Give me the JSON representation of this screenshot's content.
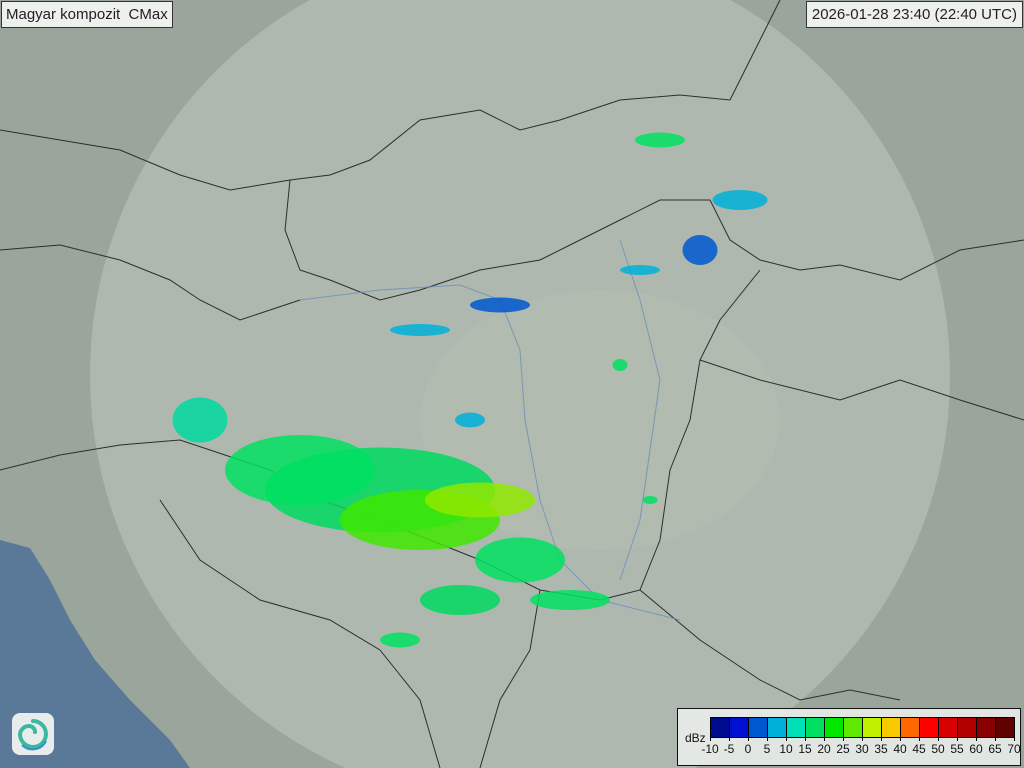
{
  "header": {
    "title": "Magyar kompozit  CMax",
    "timestamp": "2026-01-28 23:40 (22:40 UTC)"
  },
  "logo": {
    "icon": "swirl-logo-icon"
  },
  "legend": {
    "unit": "dBz",
    "ticks": [
      "-10",
      "-5",
      "0",
      "5",
      "10",
      "15",
      "20",
      "25",
      "30",
      "35",
      "40",
      "45",
      "50",
      "55",
      "60",
      "65",
      "70"
    ],
    "colors": [
      "#000c90",
      "#0010d0",
      "#0058d0",
      "#00b0d8",
      "#00e0b8",
      "#00e060",
      "#00e800",
      "#60e800",
      "#c0f000",
      "#f8c800",
      "#ff6800",
      "#ff0000",
      "#d80000",
      "#b00000",
      "#880000",
      "#600000"
    ]
  },
  "map": {
    "sea_color": "#5a7898",
    "land_color": "#9aa59c",
    "radar_coverage_color": "#c8d0c8"
  }
}
